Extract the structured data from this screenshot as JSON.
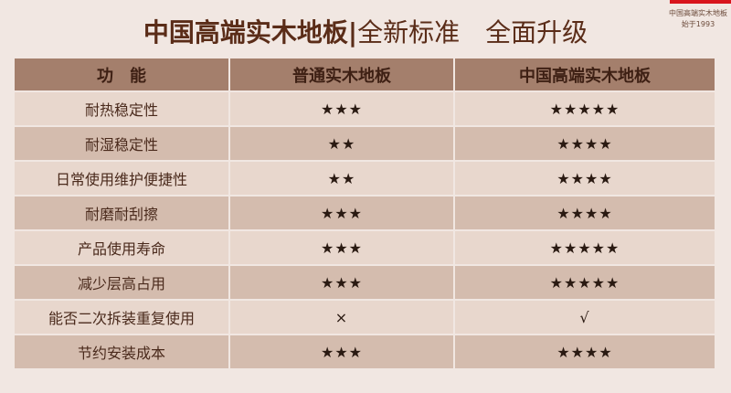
{
  "brand": {
    "name": "中国高端实木地板",
    "sub": "始于1993",
    "accent": "#d8141c"
  },
  "title": {
    "bold": "中国高端实木地板|",
    "light": "全新标准　全面升级"
  },
  "table": {
    "headers": [
      "功　能",
      "普通实木地板",
      "中国高端实木地板"
    ],
    "rows": [
      [
        "耐热稳定性",
        "★★★",
        "★★★★★"
      ],
      [
        "耐湿稳定性",
        "★★",
        "★★★★"
      ],
      [
        "日常使用维护便捷性",
        "★★",
        "★★★★"
      ],
      [
        "耐磨耐刮擦",
        "★★★",
        "★★★★"
      ],
      [
        "产品使用寿命",
        "★★★",
        "★★★★★"
      ],
      [
        "减少层高占用",
        "★★★",
        "★★★★★"
      ],
      [
        "能否二次拆装重复使用",
        "×",
        "√"
      ],
      [
        "节约安装成本",
        "★★★",
        "★★★★"
      ]
    ]
  }
}
